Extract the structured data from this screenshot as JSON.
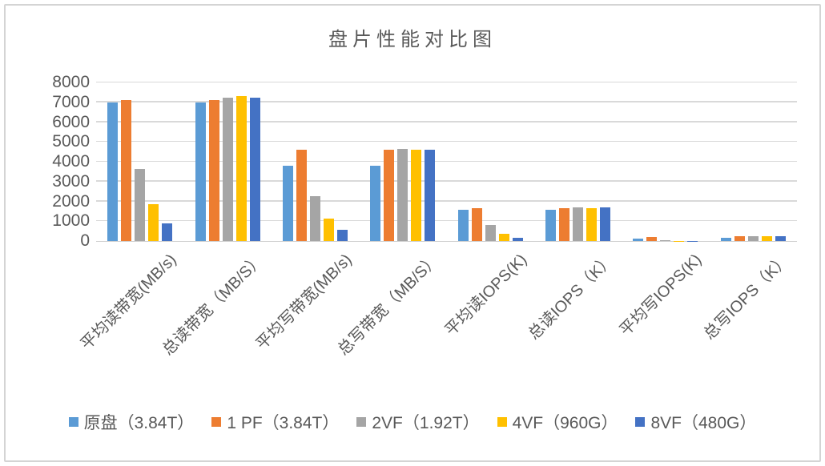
{
  "frame": {
    "background": "#ffffff",
    "border_color": "#d4d4d4"
  },
  "chart_data": {
    "type": "bar",
    "title": "盘片性能对比图",
    "title_color": "#595959",
    "categories": [
      "平均读带宽(MB/s)",
      "总读带宽（MB/S）",
      "平均写带宽(MB/s)",
      "总写带宽（MB/S）",
      "平均读IOPS(K)",
      "总读IOPS（K）",
      "平均写IOPS(K)",
      "总写IOPS（K）"
    ],
    "series": [
      {
        "name": "原盘（3.84T）",
        "color": "#5B9BD5",
        "values": [
          7000,
          7000,
          3800,
          3800,
          1580,
          1580,
          110,
          150
        ]
      },
      {
        "name": "1 PF（3.84T）",
        "color": "#ED7D31",
        "values": [
          7100,
          7100,
          4600,
          4600,
          1650,
          1660,
          200,
          240
        ]
      },
      {
        "name": "2VF（1.92T）",
        "color": "#A5A5A5",
        "values": [
          3650,
          7250,
          2280,
          4650,
          820,
          1700,
          55,
          230
        ]
      },
      {
        "name": "4VF（960G）",
        "color": "#FFC000",
        "values": [
          1850,
          7300,
          1150,
          4600,
          350,
          1660,
          10,
          250
        ]
      },
      {
        "name": "8VF（480G）",
        "color": "#4472C4",
        "values": [
          900,
          7250,
          550,
          4620,
          160,
          1700,
          10,
          240
        ]
      }
    ],
    "ylim": [
      0,
      8000
    ],
    "ytick_step": 1000,
    "ytick_labels": [
      "0",
      "1000",
      "2000",
      "3000",
      "4000",
      "5000",
      "6000",
      "7000",
      "8000"
    ],
    "grid": true,
    "gridline_color": "#d9d9d9",
    "axis_text_color": "#595959",
    "legend_position": "bottom"
  }
}
